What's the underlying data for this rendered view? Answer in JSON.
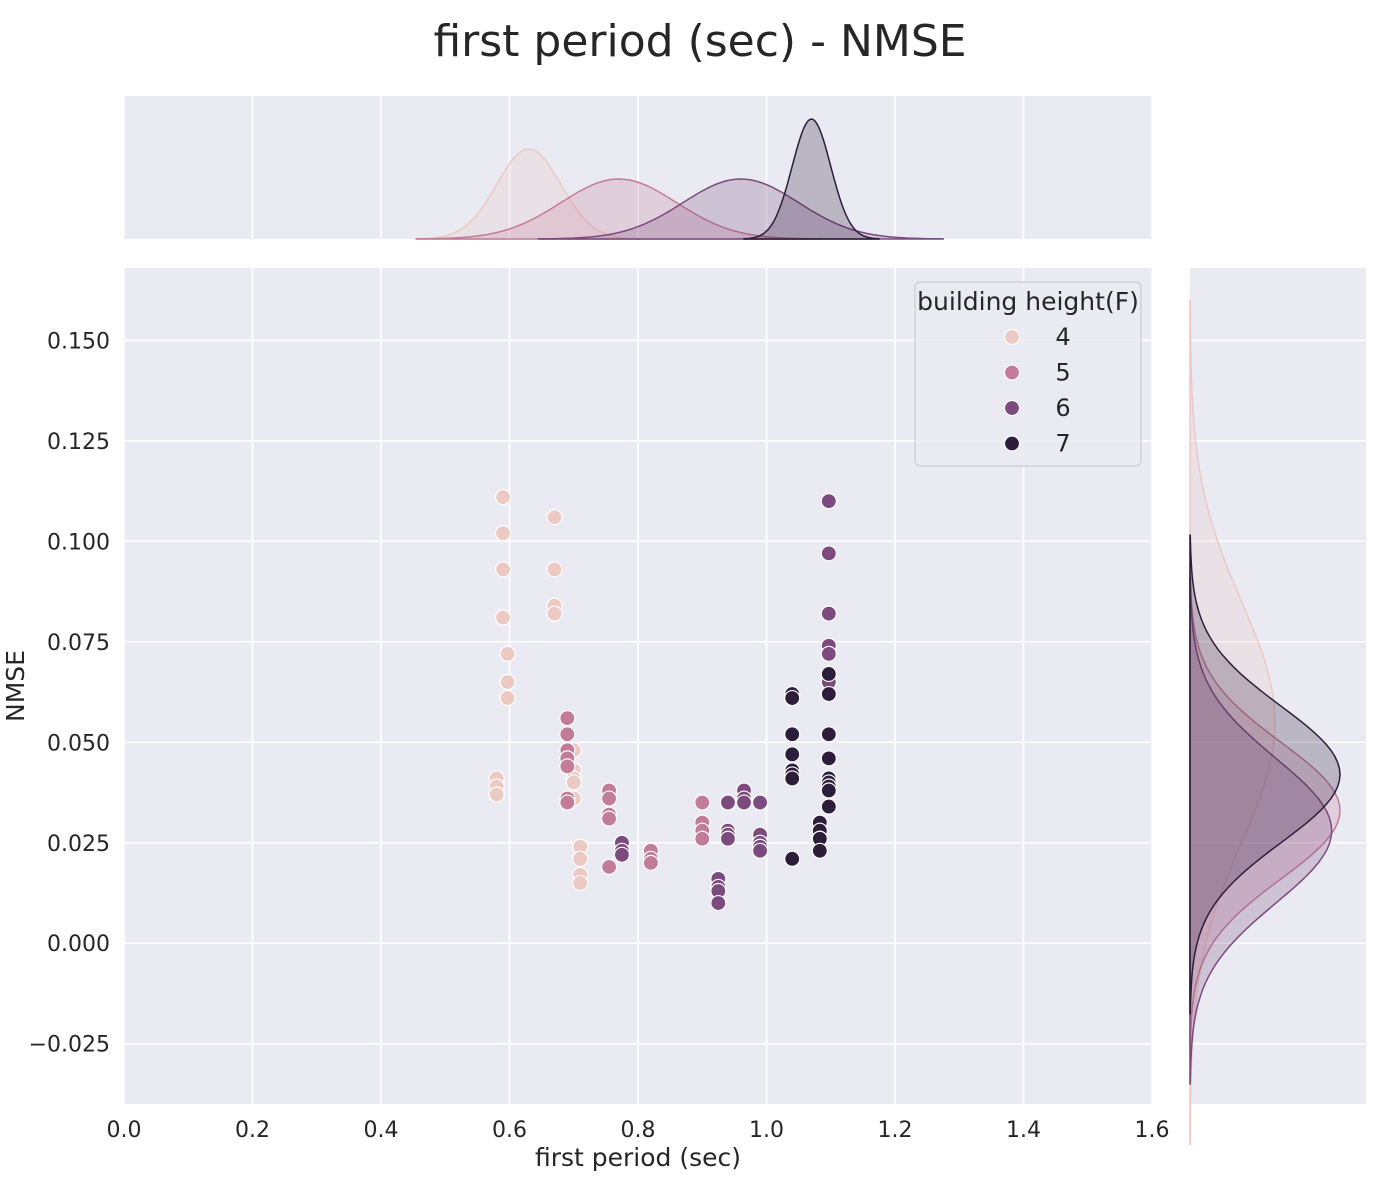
{
  "chart_data": {
    "type": "scatter",
    "title": "first period (sec) - NMSE",
    "xlabel": "first period (sec)",
    "ylabel": "NMSE",
    "xlim": [
      0.0,
      1.6
    ],
    "ylim": [
      -0.04,
      0.168
    ],
    "x_ticks": [
      "0.0",
      "0.2",
      "0.4",
      "0.6",
      "0.8",
      "1.0",
      "1.2",
      "1.4",
      "1.6"
    ],
    "y_ticks": [
      "−0.025",
      "0.000",
      "0.025",
      "0.050",
      "0.075",
      "0.100",
      "0.125",
      "0.150"
    ],
    "x_tick_values": [
      0.0,
      0.2,
      0.4,
      0.6,
      0.8,
      1.0,
      1.2,
      1.4,
      1.6
    ],
    "y_tick_values": [
      -0.025,
      0.0,
      0.025,
      0.05,
      0.075,
      0.1,
      0.125,
      0.15
    ],
    "grid": true,
    "background": "#eaeaf2",
    "legend": {
      "title": "building height(F)",
      "placement": "top-right"
    },
    "marginals": {
      "top": "kde of first period (sec) per group",
      "right": "kde of NMSE per group"
    },
    "series": [
      {
        "name": "4",
        "color": "#ecc9c3",
        "x": [
          0.59,
          0.59,
          0.59,
          0.59,
          0.597,
          0.597,
          0.597,
          0.58,
          0.58,
          0.58,
          0.67,
          0.67,
          0.67,
          0.67,
          0.7,
          0.7,
          0.7,
          0.7,
          0.7,
          0.71,
          0.71,
          0.71,
          0.71
        ],
        "y": [
          0.111,
          0.102,
          0.093,
          0.081,
          0.072,
          0.065,
          0.061,
          0.041,
          0.039,
          0.037,
          0.106,
          0.093,
          0.084,
          0.082,
          0.048,
          0.043,
          0.041,
          0.04,
          0.036,
          0.024,
          0.021,
          0.017,
          0.015
        ],
        "kde_x_mean": 0.63,
        "kde_x_sd": 0.05,
        "kde_y_mean": 0.055,
        "kde_y_sd": 0.03
      },
      {
        "name": "5",
        "color": "#c27c97",
        "x": [
          0.69,
          0.69,
          0.69,
          0.69,
          0.69,
          0.69,
          0.69,
          0.755,
          0.755,
          0.755,
          0.755,
          0.755,
          0.82,
          0.82,
          0.82,
          0.9,
          0.9,
          0.9,
          0.9
        ],
        "y": [
          0.056,
          0.052,
          0.048,
          0.046,
          0.044,
          0.036,
          0.035,
          0.038,
          0.036,
          0.032,
          0.031,
          0.019,
          0.023,
          0.021,
          0.02,
          0.035,
          0.03,
          0.028,
          0.026
        ],
        "kde_x_mean": 0.77,
        "kde_x_sd": 0.09,
        "kde_y_mean": 0.033,
        "kde_y_sd": 0.017
      },
      {
        "name": "6",
        "color": "#7d4a80",
        "x": [
          0.775,
          0.775,
          0.775,
          0.925,
          0.925,
          0.925,
          0.925,
          0.94,
          0.94,
          0.94,
          0.94,
          0.965,
          0.965,
          0.965,
          0.99,
          0.99,
          0.99,
          0.99,
          0.99,
          1.097,
          1.097,
          1.097,
          1.097,
          1.097,
          1.097,
          1.097
        ],
        "y": [
          0.025,
          0.023,
          0.022,
          0.016,
          0.014,
          0.013,
          0.01,
          0.035,
          0.028,
          0.027,
          0.026,
          0.038,
          0.036,
          0.035,
          0.035,
          0.027,
          0.025,
          0.024,
          0.023,
          0.11,
          0.097,
          0.082,
          0.074,
          0.072,
          0.066,
          0.065
        ],
        "kde_x_mean": 0.96,
        "kde_x_sd": 0.09,
        "kde_y_mean": 0.028,
        "kde_y_sd": 0.018
      },
      {
        "name": "7",
        "color": "#2c1d3a",
        "x": [
          1.04,
          1.04,
          1.04,
          1.04,
          1.04,
          1.04,
          1.04,
          1.04,
          1.083,
          1.083,
          1.083,
          1.083,
          1.083,
          1.097,
          1.097,
          1.097,
          1.097,
          1.097,
          1.097,
          1.097,
          1.097,
          1.097
        ],
        "y": [
          0.062,
          0.061,
          0.052,
          0.047,
          0.043,
          0.042,
          0.041,
          0.021,
          0.03,
          0.028,
          0.026,
          0.026,
          0.023,
          0.067,
          0.062,
          0.052,
          0.046,
          0.041,
          0.04,
          0.039,
          0.038,
          0.034
        ],
        "kde_x_mean": 1.07,
        "kde_x_sd": 0.03,
        "kde_y_mean": 0.042,
        "kde_y_sd": 0.017
      }
    ]
  }
}
